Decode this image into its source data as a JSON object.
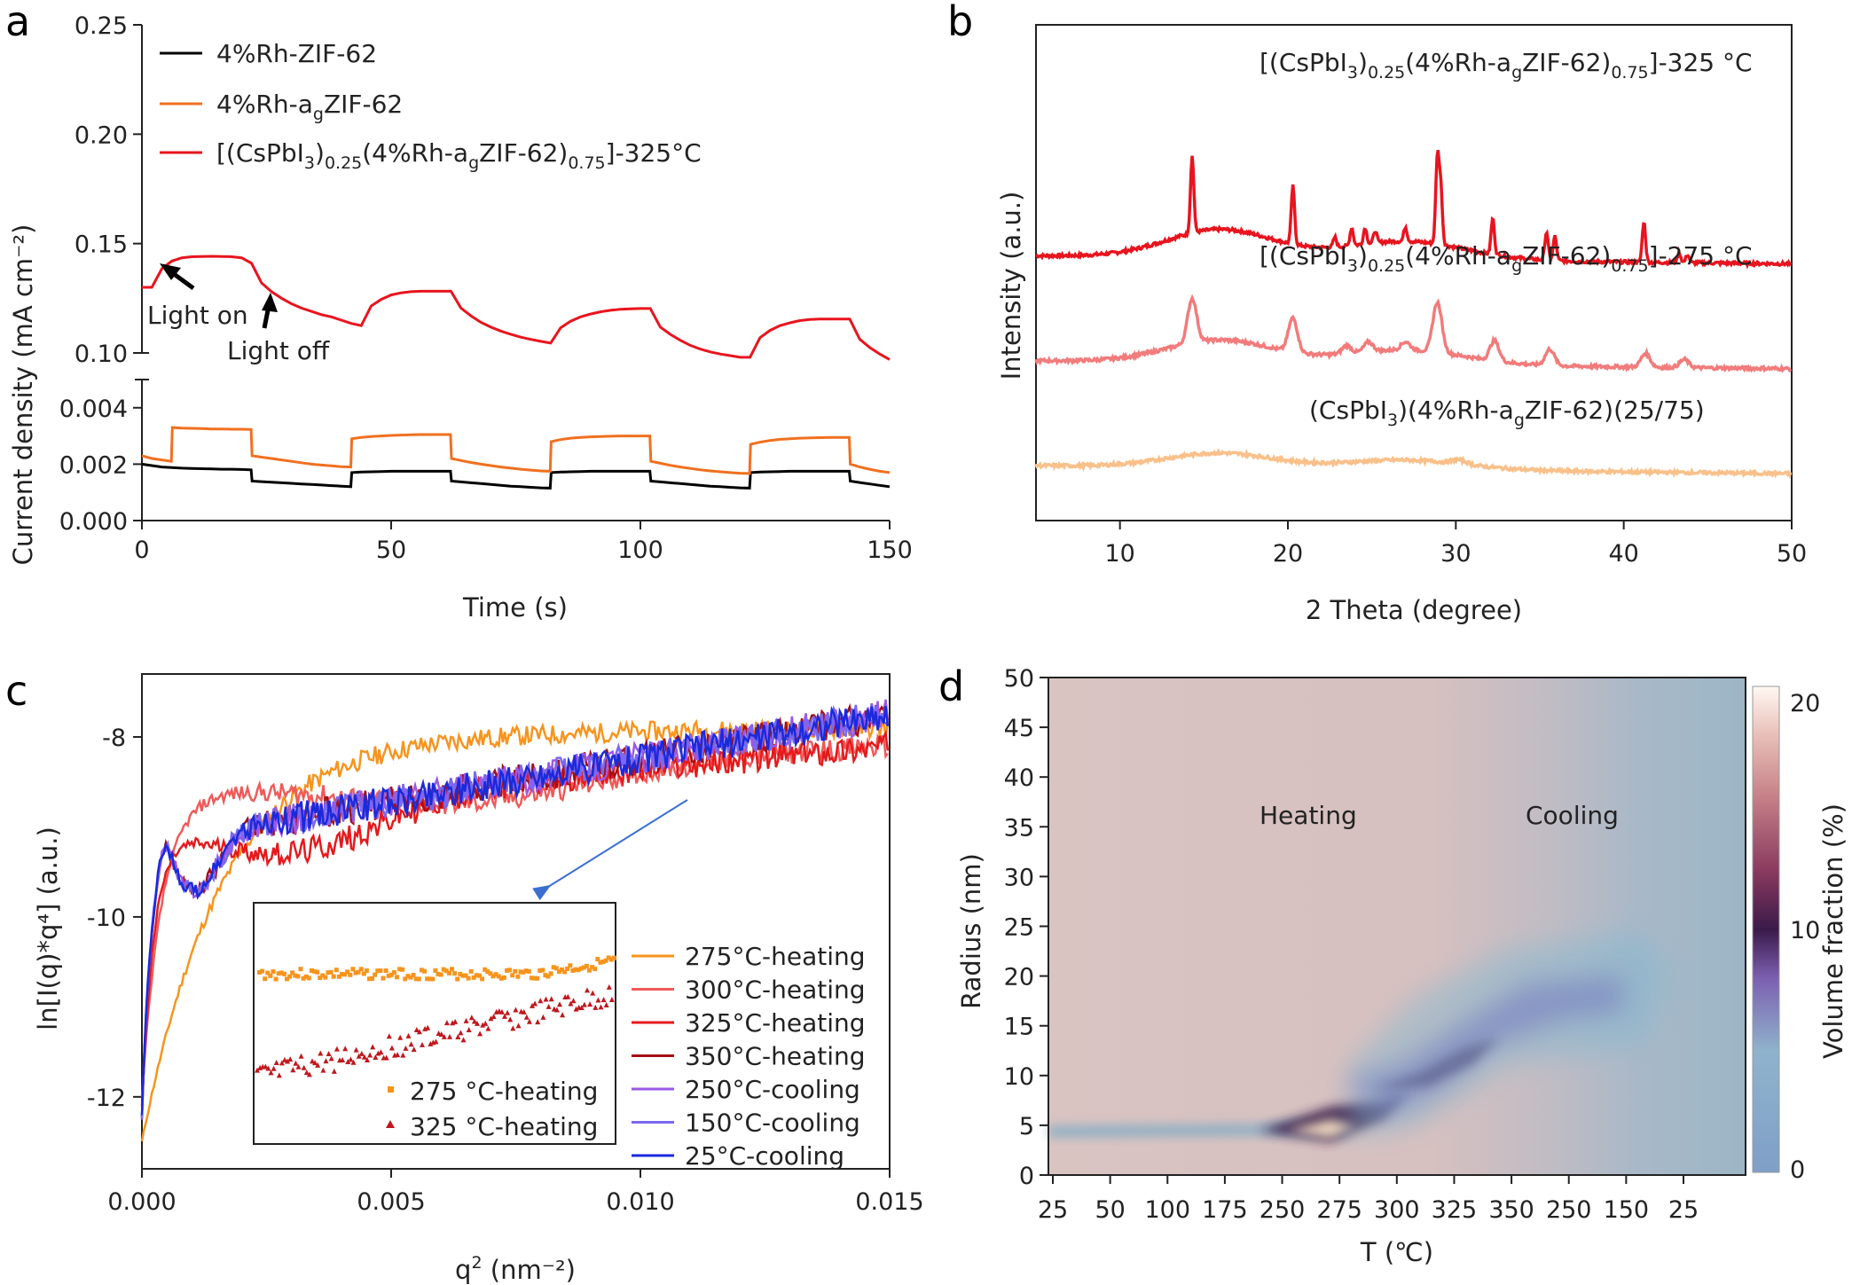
{
  "panels": {
    "a": "a",
    "b": "b",
    "c": "c",
    "d": "d"
  },
  "chart_data": [
    {
      "id": "a",
      "type": "line",
      "xlabel": "Time (s)",
      "ylabel": "Current density (mA cm⁻²)",
      "xlim": [
        0,
        150
      ],
      "xticks": [
        "0",
        "50",
        "100",
        "150"
      ],
      "ylim_upper": [
        0.1,
        0.25
      ],
      "yticks_upper": [
        "0.10",
        "0.15",
        "0.20",
        "0.25"
      ],
      "ylim_lower": [
        0,
        0.005
      ],
      "yticks_lower": [
        "0.000",
        "0.002",
        "0.004"
      ],
      "annotations": {
        "light_on": "Light on",
        "light_off": "Light off"
      },
      "light_cycles": [
        [
          2,
          22
        ],
        [
          42,
          62
        ],
        [
          82,
          102
        ],
        [
          122,
          142
        ]
      ],
      "series": [
        {
          "name": "4%Rh-ZIF-62",
          "color": "#000000",
          "axis": "lower",
          "x": [
            0,
            2,
            4,
            6,
            8,
            10,
            12,
            14,
            16,
            18,
            20,
            21.9,
            22.1,
            24,
            26,
            28,
            30,
            32,
            34,
            36,
            38,
            40,
            41.9,
            42.1,
            44,
            46,
            48,
            50,
            52,
            54,
            56,
            58,
            60,
            61.9,
            62.1,
            64,
            66,
            68,
            70,
            72,
            74,
            76,
            78,
            80,
            81.9,
            82.1,
            84,
            86,
            88,
            90,
            92,
            94,
            96,
            98,
            100,
            101.9,
            102.1,
            104,
            106,
            108,
            110,
            112,
            114,
            116,
            118,
            120,
            121.9,
            122.1,
            124,
            126,
            128,
            130,
            132,
            134,
            136,
            138,
            140,
            141.9,
            142.1,
            144,
            146,
            148,
            150
          ],
          "y": [
            0.002,
            0.00195,
            0.0019,
            0.00188,
            0.00186,
            0.00185,
            0.00184,
            0.00183,
            0.00182,
            0.00182,
            0.00181,
            0.0018,
            0.0014,
            0.00138,
            0.00136,
            0.00134,
            0.00132,
            0.0013,
            0.00128,
            0.00126,
            0.00124,
            0.00122,
            0.0012,
            0.0017,
            0.00172,
            0.00173,
            0.00174,
            0.00175,
            0.00175,
            0.00175,
            0.00175,
            0.00175,
            0.00175,
            0.00175,
            0.0014,
            0.00137,
            0.00134,
            0.00131,
            0.00128,
            0.00125,
            0.00122,
            0.0012,
            0.00118,
            0.00116,
            0.00115,
            0.0017,
            0.00172,
            0.00173,
            0.00174,
            0.00175,
            0.00175,
            0.00175,
            0.00175,
            0.00175,
            0.00175,
            0.00175,
            0.0014,
            0.00137,
            0.00134,
            0.00131,
            0.00128,
            0.00125,
            0.00122,
            0.0012,
            0.00118,
            0.00116,
            0.00115,
            0.0017,
            0.00172,
            0.00173,
            0.00174,
            0.00175,
            0.00175,
            0.00175,
            0.00175,
            0.00175,
            0.00175,
            0.00175,
            0.0014,
            0.00135,
            0.0013,
            0.00125,
            0.0012
          ]
        },
        {
          "name": "4%Rh-a₉ZIF-62",
          "label_main": "4%Rh-a",
          "label_sub": "g",
          "label_tail": "ZIF-62",
          "color": "#f07020",
          "axis": "lower",
          "x": [
            0,
            2,
            4,
            5.9,
            6.1,
            8,
            10,
            12,
            14,
            16,
            18,
            20,
            21.9,
            22.1,
            24,
            26,
            28,
            30,
            32,
            34,
            36,
            38,
            40,
            41.9,
            42.1,
            44,
            46,
            48,
            50,
            52,
            54,
            56,
            58,
            60,
            61.9,
            62.1,
            64,
            66,
            68,
            70,
            72,
            74,
            76,
            78,
            80,
            81.9,
            82.1,
            84,
            86,
            88,
            90,
            92,
            94,
            96,
            98,
            100,
            101.9,
            102.1,
            104,
            106,
            108,
            110,
            112,
            114,
            116,
            118,
            120,
            121.9,
            122.1,
            124,
            126,
            128,
            130,
            132,
            134,
            136,
            138,
            140,
            141.9,
            142.1,
            144,
            146,
            148,
            150
          ],
          "y": [
            0.0023,
            0.0022,
            0.00215,
            0.0021,
            0.0033,
            0.00328,
            0.00327,
            0.00326,
            0.00325,
            0.00325,
            0.00324,
            0.00324,
            0.00323,
            0.0023,
            0.00225,
            0.0022,
            0.00215,
            0.0021,
            0.00205,
            0.002,
            0.00197,
            0.00194,
            0.00191,
            0.0019,
            0.0029,
            0.00295,
            0.00298,
            0.003,
            0.00302,
            0.00303,
            0.00304,
            0.00305,
            0.00305,
            0.00305,
            0.00305,
            0.0022,
            0.00213,
            0.00206,
            0.002,
            0.00195,
            0.0019,
            0.00186,
            0.00182,
            0.00179,
            0.00176,
            0.00175,
            0.0028,
            0.00287,
            0.00292,
            0.00295,
            0.00297,
            0.00298,
            0.00299,
            0.003,
            0.003,
            0.003,
            0.003,
            0.0021,
            0.00203,
            0.00196,
            0.0019,
            0.00185,
            0.0018,
            0.00176,
            0.00173,
            0.0017,
            0.00168,
            0.00167,
            0.0027,
            0.00278,
            0.00284,
            0.00288,
            0.0029,
            0.00292,
            0.00293,
            0.00294,
            0.00295,
            0.00295,
            0.00295,
            0.002,
            0.0019,
            0.00182,
            0.00175,
            0.0017
          ]
        },
        {
          "name": "[(CsPbI₃)₀.₂₅(4%Rh-a₉ZIF-62)₀.₇₅]-325°C",
          "label_a": "[(CsPbI",
          "label_b": "3",
          "label_c": ")",
          "label_d": "0.25",
          "label_e": "(4%Rh-a",
          "label_f": "g",
          "label_g": "ZIF-62)",
          "label_h": "0.75",
          "label_i": "]-325°C",
          "color": "#e8141e",
          "axis": "upper",
          "x": [
            0,
            2,
            4,
            6,
            8,
            10,
            12,
            14,
            16,
            18,
            20,
            22,
            24,
            26,
            28,
            30,
            32,
            34,
            36,
            38,
            40,
            42,
            44,
            46,
            48,
            50,
            52,
            54,
            56,
            58,
            60,
            62,
            64,
            66,
            68,
            70,
            72,
            74,
            76,
            78,
            80,
            82,
            84,
            86,
            88,
            90,
            92,
            94,
            96,
            98,
            100,
            102,
            104,
            106,
            108,
            110,
            112,
            114,
            116,
            118,
            120,
            122,
            124,
            126,
            128,
            130,
            132,
            134,
            136,
            138,
            140,
            142,
            144,
            146,
            148,
            150
          ],
          "y": [
            0.13,
            0.13,
            0.1385,
            0.142,
            0.1435,
            0.144,
            0.1441,
            0.1442,
            0.1441,
            0.144,
            0.1435,
            0.141,
            0.132,
            0.128,
            0.125,
            0.1225,
            0.1205,
            0.119,
            0.1175,
            0.1165,
            0.115,
            0.1135,
            0.1125,
            0.1215,
            0.1245,
            0.1265,
            0.1275,
            0.128,
            0.1282,
            0.1282,
            0.1282,
            0.1282,
            0.1205,
            0.117,
            0.114,
            0.1118,
            0.11,
            0.1085,
            0.1072,
            0.1062,
            0.1053,
            0.1045,
            0.1115,
            0.1145,
            0.1165,
            0.1178,
            0.1188,
            0.1195,
            0.12,
            0.1202,
            0.1203,
            0.1203,
            0.1118,
            0.1085,
            0.1058,
            0.1035,
            0.1018,
            0.1005,
            0.0995,
            0.0988,
            0.098,
            0.098,
            0.107,
            0.1103,
            0.1125,
            0.1138,
            0.1148,
            0.1153,
            0.1155,
            0.1155,
            0.1155,
            0.1155,
            0.1063,
            0.1025,
            0.0995,
            0.097
          ]
        }
      ]
    },
    {
      "id": "b",
      "type": "line",
      "xlabel": "2 Theta (degree)",
      "ylabel": "Intensity (a.u.)",
      "xlim": [
        5,
        50
      ],
      "xticks": [
        "10",
        "20",
        "30",
        "40",
        "50"
      ],
      "series": [
        {
          "label_a": "[(CsPbI",
          "label_b": "3",
          "label_c": ")",
          "label_d": "0.25",
          "label_e": "(4%Rh-a",
          "label_f": "g",
          "label_g": "ZIF-62)",
          "label_h": "0.75",
          "label_i": "]-325 °C",
          "color": "#e8141e",
          "offset": 2.6,
          "peaks": [
            [
              14.3,
              0.95
            ],
            [
              20.3,
              0.72
            ],
            [
              22.8,
              0.12
            ],
            [
              23.8,
              0.22
            ],
            [
              24.6,
              0.2
            ],
            [
              25.2,
              0.15
            ],
            [
              27,
              0.18
            ],
            [
              28.9,
              1.05
            ],
            [
              29.1,
              0.7
            ],
            [
              32.2,
              0.45
            ],
            [
              35.4,
              0.35
            ],
            [
              35.9,
              0.3
            ],
            [
              41.2,
              0.5
            ],
            [
              43.3,
              0.12
            ],
            [
              43.8,
              0.1
            ]
          ],
          "hump": 0.35,
          "width": 0.14
        },
        {
          "label_a": "[(CsPbI",
          "label_b": "3",
          "label_c": ")",
          "label_d": "0.25",
          "label_e": "(4%Rh-a",
          "label_f": "g",
          "label_g": "ZIF-62)",
          "label_h": "0.75",
          "label_i": "]-275 °C",
          "color": "#f27b7b",
          "offset": 1.3,
          "peaks": [
            [
              14.3,
              0.55
            ],
            [
              20.3,
              0.42
            ],
            [
              23.5,
              0.1
            ],
            [
              24.8,
              0.12
            ],
            [
              27,
              0.1
            ],
            [
              28.9,
              0.62
            ],
            [
              32.3,
              0.25
            ],
            [
              35.6,
              0.2
            ],
            [
              41.3,
              0.17
            ],
            [
              43.6,
              0.1
            ]
          ],
          "hump": 0.28,
          "width": 0.38
        },
        {
          "label_a": "(CsPbI",
          "label_b": "3",
          "label_c": ")(4%Rh-a",
          "label_f": "g",
          "label_i": "ZIF-62)(25/75)",
          "color": "#f9c08a",
          "offset": 0.0,
          "peaks": [
            [
              30.2,
              0.05
            ]
          ],
          "hump": 0.18,
          "width": 0.6
        }
      ]
    },
    {
      "id": "c",
      "type": "line",
      "xlabel_main": "q",
      "xlabel_sup": "2",
      "xlabel_tail": " (nm⁻²)",
      "ylabel": "ln[I(q)*q⁴] (a.u.)",
      "xlim": [
        0,
        0.015
      ],
      "ylim": [
        -12.8,
        -7.3
      ],
      "xticks": [
        "0.000",
        "0.005",
        "0.010",
        "0.015"
      ],
      "yticks": [
        "-8",
        "-10",
        "-12"
      ],
      "series": [
        {
          "name": "275°C-heating",
          "color": "#f7941d",
          "kind": "275"
        },
        {
          "name": "300°C-heating",
          "color": "#f05a5a",
          "kind": "300"
        },
        {
          "name": "325°C-heating",
          "color": "#e41a1c",
          "kind": "325"
        },
        {
          "name": "350°C-heating",
          "color": "#a50f15",
          "kind": "350"
        },
        {
          "name": "250°C-cooling",
          "color": "#9b59e6",
          "kind": "250c"
        },
        {
          "name": "150°C-cooling",
          "color": "#7b68ee",
          "kind": "150c"
        },
        {
          "name": "25°C-cooling",
          "color": "#1a2adb",
          "kind": "25c"
        }
      ],
      "inset": {
        "series": [
          {
            "name": "275 °C-heating",
            "color": "#f7941d",
            "marker": "square"
          },
          {
            "name": "325 °C-heating",
            "color": "#c0181e",
            "marker": "triangle"
          }
        ]
      }
    },
    {
      "id": "d",
      "type": "heatmap",
      "xlabel": "T (℃)",
      "ylabel": "Radius (nm)",
      "xticks": [
        "25",
        "50",
        "100",
        "175",
        "250",
        "275",
        "300",
        "325",
        "350",
        "250",
        "150",
        "25"
      ],
      "yticks": [
        "0",
        "5",
        "10",
        "15",
        "20",
        "25",
        "30",
        "35",
        "40",
        "45",
        "50"
      ],
      "ylim": [
        0,
        50
      ],
      "colorbar_label": "Volume fraction (%)",
      "colorbar_ticks": [
        "20",
        "10",
        "0"
      ],
      "colorbar_range": [
        0,
        20
      ],
      "annotations": {
        "heating": "Heating",
        "cooling": "Cooling"
      }
    }
  ]
}
